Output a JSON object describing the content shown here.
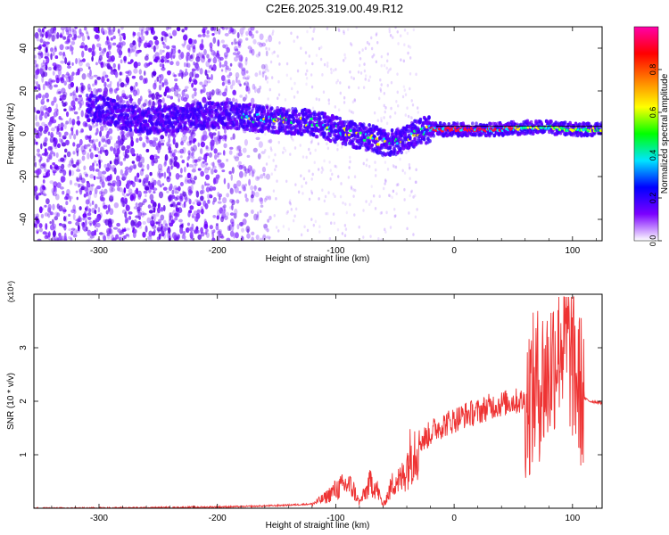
{
  "title": "C2E6.2025.319.00.49.R12",
  "chart_data": [
    {
      "type": "heatmap",
      "xlabel": "Height of straight line (km)",
      "ylabel": "Frequency (Hz)",
      "xlim": [
        -355,
        125
      ],
      "ylim": [
        -50,
        50
      ],
      "xticks": [
        -300,
        -200,
        -100,
        0,
        100
      ],
      "yticks": [
        -40,
        -20,
        0,
        20,
        40
      ],
      "grid": false,
      "colorbar": {
        "label": "Normalized spectral amplitude",
        "ticks": [
          0.0,
          0.2,
          0.4,
          0.6,
          0.8
        ],
        "range": [
          0,
          1
        ],
        "colors": [
          "#ffffff",
          "#7b00ff",
          "#0000ff",
          "#00e5ff",
          "#00ff00",
          "#ffff00",
          "#ff8000",
          "#ff0000",
          "#ff00aa"
        ]
      },
      "ridge": {
        "x": [
          -300,
          -280,
          -260,
          -240,
          -220,
          -200,
          -180,
          -160,
          -140,
          -120,
          -100,
          -90,
          -80,
          -70,
          -60,
          -50,
          -40,
          -30,
          -20,
          -10,
          0,
          20,
          40,
          60,
          80,
          100,
          125
        ],
        "y": [
          12,
          8,
          6,
          7,
          8,
          9,
          8,
          7,
          6,
          5,
          2,
          0,
          -1,
          -2,
          -4,
          -4,
          -2,
          1,
          2,
          2,
          2,
          2,
          2,
          3,
          3,
          2,
          2
        ]
      }
    },
    {
      "type": "line",
      "xlabel": "Height of straight line (km)",
      "ylabel": "SNR (10 * v/v)",
      "multiplier": "(x10⁴)",
      "xlim": [
        -355,
        125
      ],
      "ylim": [
        0,
        4
      ],
      "xticks": [
        -300,
        -200,
        -100,
        0,
        100
      ],
      "yticks": [
        1,
        2,
        3
      ],
      "color": "#ee3333",
      "series": [
        {
          "x": [
            -355,
            -250,
            -180,
            -150,
            -120,
            -110,
            -100,
            -95,
            -90,
            -85,
            -80,
            -75,
            -70,
            -65,
            -60,
            -55,
            -50,
            -45,
            -40,
            -35,
            -30,
            -25,
            -20,
            -15,
            -10,
            -5,
            0,
            10,
            20,
            30,
            40,
            50,
            60,
            65,
            70,
            75,
            80,
            85,
            90,
            95,
            100,
            105,
            110,
            115,
            125
          ],
          "y": [
            0.0,
            0.01,
            0.03,
            0.05,
            0.08,
            0.18,
            0.35,
            0.4,
            0.45,
            0.35,
            0.1,
            0.3,
            0.5,
            0.35,
            0.05,
            0.3,
            0.55,
            0.5,
            0.8,
            1.1,
            1.25,
            1.3,
            1.4,
            1.5,
            1.55,
            1.6,
            1.65,
            1.75,
            1.8,
            1.9,
            1.95,
            2.0,
            2.0,
            2.1,
            2.3,
            2.4,
            2.5,
            2.9,
            3.2,
            3.1,
            2.7,
            2.3,
            2.05,
            2.0,
            1.97
          ]
        }
      ]
    }
  ]
}
